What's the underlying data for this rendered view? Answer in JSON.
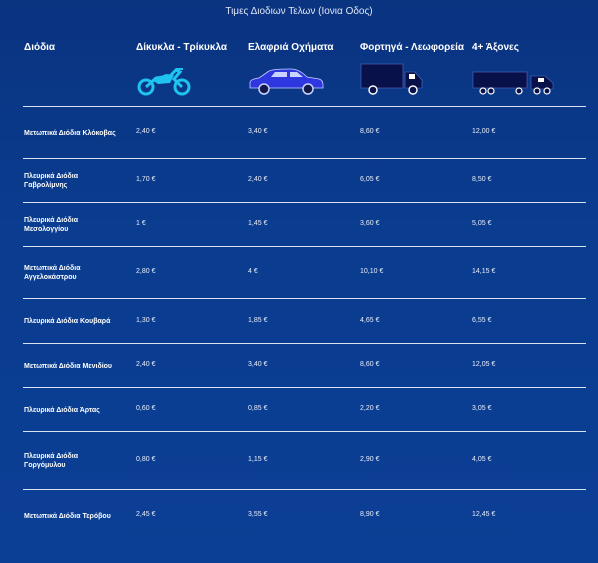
{
  "page_title": "Τιμες Διοδιων Τελων (Ιονια Οδος)",
  "columns": [
    "Διόδια",
    "Δίκυκλα - Τρίκυκλα",
    "Ελαφριά Οχήματα",
    "Φορτηγά - Λεωφορεία",
    "4+ Άξονες"
  ],
  "icons": [
    "motorcycle-icon",
    "car-icon",
    "truck-icon",
    "semi-truck-icon"
  ],
  "colors": {
    "background": "#0a3583",
    "accent": "#1ec3f0",
    "car": "#2e36e0",
    "truck": "#08114a"
  },
  "rows": [
    {
      "name": [
        "Μετωπικά Διόδια Κλόκοβας"
      ],
      "values": [
        "2,40 €",
        "3,40 €",
        "8,60 €",
        "12,00 €"
      ]
    },
    {
      "name": [
        "Πλευρικά Διόδια",
        "Γαβρολίμνης"
      ],
      "values": [
        "1,70 €",
        "2,40 €",
        "6,05 €",
        "8,50 €"
      ]
    },
    {
      "name": [
        "Πλευρικά Διόδια",
        "Μεσολογγίου"
      ],
      "values": [
        "1 €",
        "1,45 €",
        "3,60 €",
        "5,05 €"
      ]
    },
    {
      "name": [
        "Μετωπικά Διόδια",
        "Αγγελοκάστρου"
      ],
      "values": [
        "2,80 €",
        "4 €",
        "10,10 €",
        "14,15 €"
      ]
    },
    {
      "name": [
        "Πλευρικά Διόδια Κουβαρά"
      ],
      "values": [
        "1,30 €",
        "1,85 €",
        "4,65 €",
        "6,55 €"
      ]
    },
    {
      "name": [
        "Μετωπικά Διόδια Μενιδίου"
      ],
      "values": [
        "2,40 €",
        "3,40 €",
        "8,60 €",
        "12,05 €"
      ]
    },
    {
      "name": [
        "Πλευρικά Διόδια Άρτας"
      ],
      "values": [
        "0,60 €",
        "0,85 €",
        "2,20 €",
        "3,05 €"
      ]
    },
    {
      "name": [
        "Πλευρικά Διόδια",
        "Γοργόμυλου"
      ],
      "values": [
        "0,80 €",
        "1,15 €",
        "2,90 €",
        "4,05 €"
      ]
    },
    {
      "name": [
        "Μετωπικά Διόδια Τερόβου"
      ],
      "values": [
        "2,45 €",
        "3,55 €",
        "8,90 €",
        "12,45 €"
      ]
    }
  ]
}
